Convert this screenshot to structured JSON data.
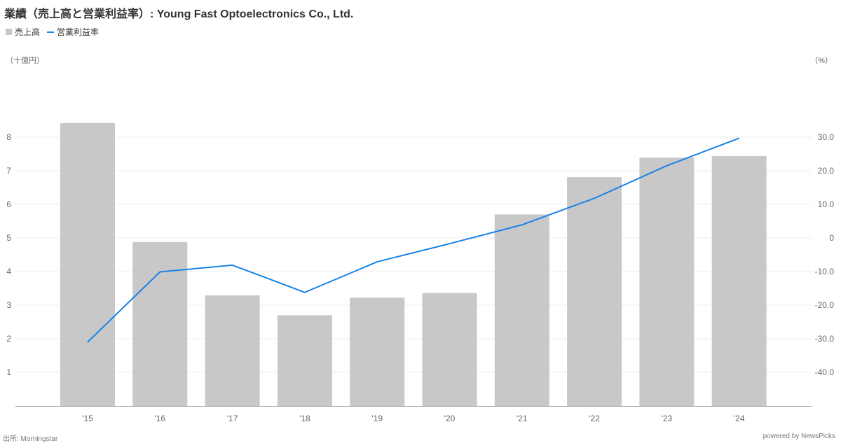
{
  "header": {
    "title": "業績（売上高と営業利益率）: Young Fast Optoelectronics Co., Ltd."
  },
  "legend": {
    "items": [
      {
        "label": "売上高",
        "color": "#c8c8c8",
        "shape": "box"
      },
      {
        "label": "営業利益率",
        "color": "#1a82e8",
        "shape": "line"
      }
    ]
  },
  "axes": {
    "left_unit": "（十億円）",
    "right_unit": "（%）"
  },
  "footer": {
    "source": "出所: Morningstar",
    "powered": "powered by NewsPicks"
  },
  "chart_data": {
    "type": "bar",
    "categories": [
      "'15",
      "'16",
      "'17",
      "'18",
      "'19",
      "'20",
      "'21",
      "'22",
      "'23",
      "'24"
    ],
    "series": [
      {
        "name": "売上高",
        "type": "bar",
        "axis": "left",
        "color": "#c8c8c8",
        "values": [
          8.42,
          4.88,
          3.29,
          2.7,
          3.22,
          3.36,
          5.7,
          6.81,
          7.39,
          7.44
        ]
      },
      {
        "name": "営業利益率",
        "type": "line",
        "axis": "right",
        "color": "#1a82e8",
        "values": [
          -31.0,
          -10.1,
          -8.1,
          -16.2,
          -7.1,
          -1.7,
          3.9,
          11.8,
          21.5,
          29.7
        ]
      }
    ],
    "left_axis": {
      "ylim": [
        0,
        10
      ],
      "ticks": [
        "1",
        "2",
        "3",
        "4",
        "5",
        "6",
        "7",
        "8"
      ],
      "tick_values": [
        1,
        2,
        3,
        4,
        5,
        6,
        7,
        8
      ]
    },
    "right_axis": {
      "ylim": [
        -50,
        50
      ],
      "ticks": [
        "-40.0",
        "-30.0",
        "-20.0",
        "-10.0",
        "0",
        "10.0",
        "20.0",
        "30.0"
      ],
      "tick_values": [
        -40,
        -30,
        -20,
        -10,
        0,
        10,
        20,
        30
      ]
    },
    "grid": true,
    "legend_position": "top-left"
  }
}
